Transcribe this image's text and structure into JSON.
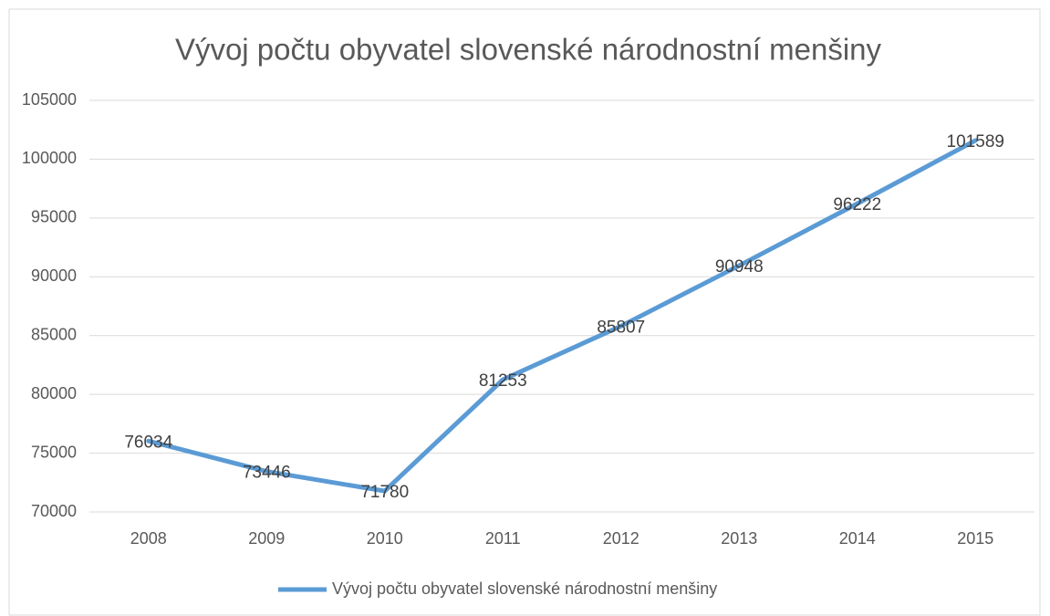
{
  "chart_data": {
    "type": "line",
    "title": "Vývoj počtu obyvatel slovenské národnostní menšiny",
    "categories": [
      "2008",
      "2009",
      "2010",
      "2011",
      "2012",
      "2013",
      "2014",
      "2015"
    ],
    "series": [
      {
        "name": "Vývoj počtu obyvatel slovenské národnostní menšiny",
        "color": "#5b9bd5",
        "values": [
          76034,
          73446,
          71780,
          81253,
          85807,
          90948,
          96222,
          101589
        ]
      }
    ],
    "ylim": [
      70000,
      105000
    ],
    "yticks": [
      70000,
      75000,
      80000,
      85000,
      90000,
      95000,
      100000,
      105000
    ],
    "grid": true,
    "legend": "bottom"
  }
}
